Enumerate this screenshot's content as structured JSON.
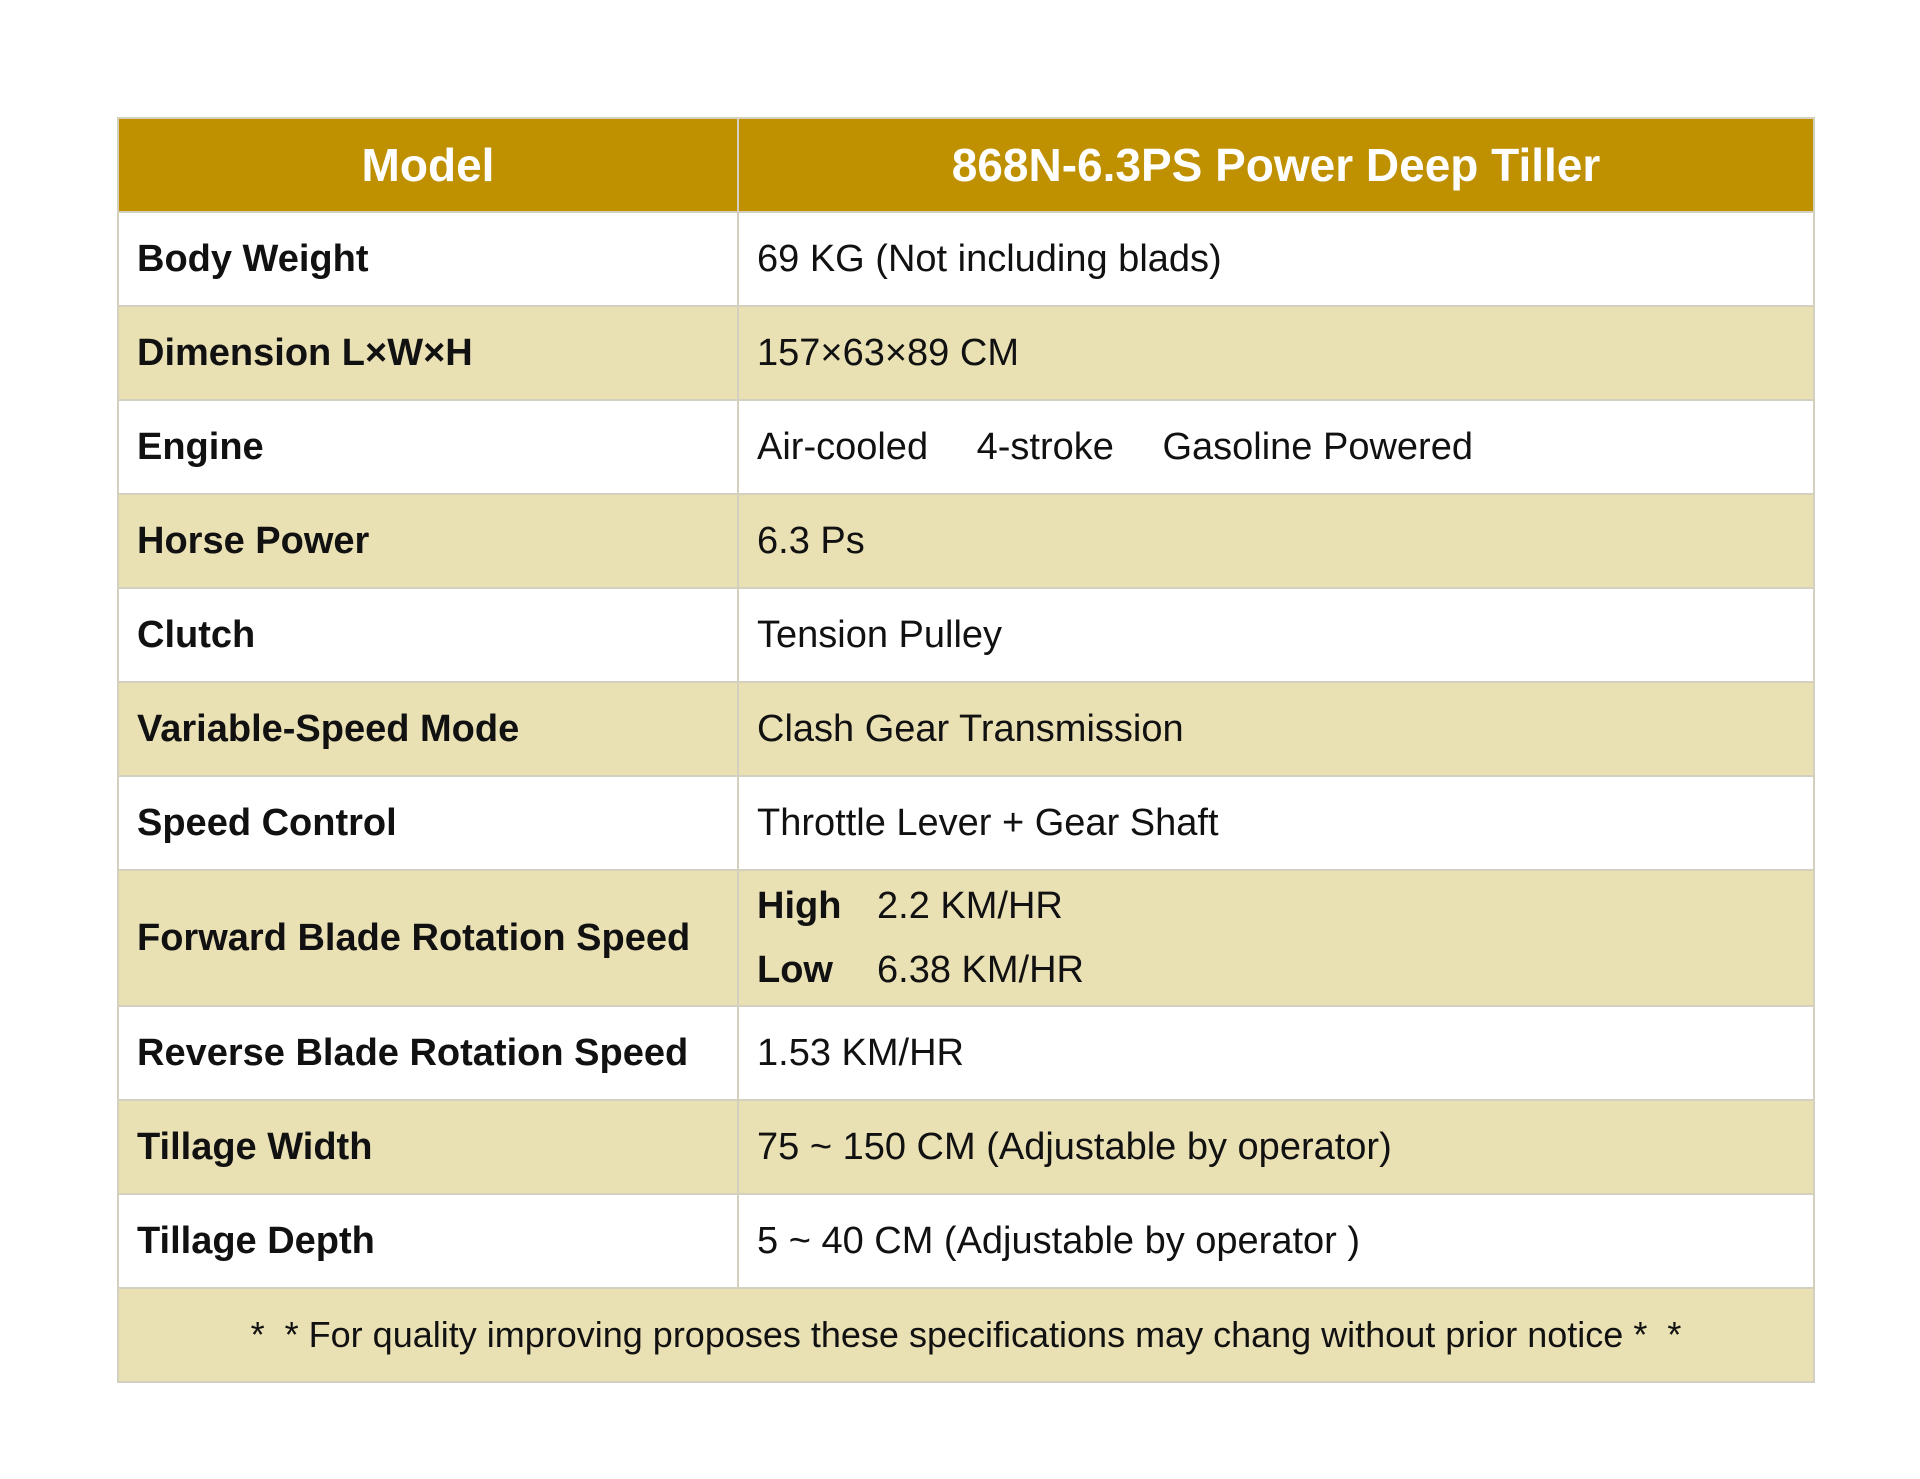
{
  "table": {
    "header": {
      "col1": "Model",
      "col2": "868N-6.3PS Power Deep Tiller"
    },
    "rows": [
      {
        "label": "Body Weight",
        "value": "69 KG (Not including blads)"
      },
      {
        "label": "Dimension L×W×H",
        "value": "157×63×89 CM"
      },
      {
        "label": "Engine",
        "value": "Air-cooled  4-stroke  Gasoline Powered"
      },
      {
        "label": "Horse Power",
        "value": "6.3 Ps"
      },
      {
        "label": "Clutch",
        "value": "Tension Pulley"
      },
      {
        "label": "Variable-Speed Mode",
        "value": "Clash Gear Transmission"
      },
      {
        "label": "Speed Control",
        "value": "Throttle Lever + Gear Shaft"
      },
      {
        "label": "Forward Blade Rotation Speed",
        "high_label": "High",
        "high_value": "2.2 KM/HR",
        "low_label": "Low",
        "low_value": "6.38 KM/HR"
      },
      {
        "label": "Reverse Blade Rotation Speed",
        "value": "1.53 KM/HR"
      },
      {
        "label": "Tillage Width",
        "value": "75 ~ 150 CM (Adjustable by operator)"
      },
      {
        "label": "Tillage Depth",
        "value": "5 ~ 40 CM (Adjustable by operator )"
      }
    ],
    "footnote": "*  * For quality improving proposes these specifications may chang without prior notice *  *"
  },
  "colors": {
    "header_bg": "#bf9000",
    "header_text": "#ffffff",
    "stripe_bg": "#e9e0b4",
    "row_bg": "#ffffff",
    "border": "#d4d0c0"
  }
}
